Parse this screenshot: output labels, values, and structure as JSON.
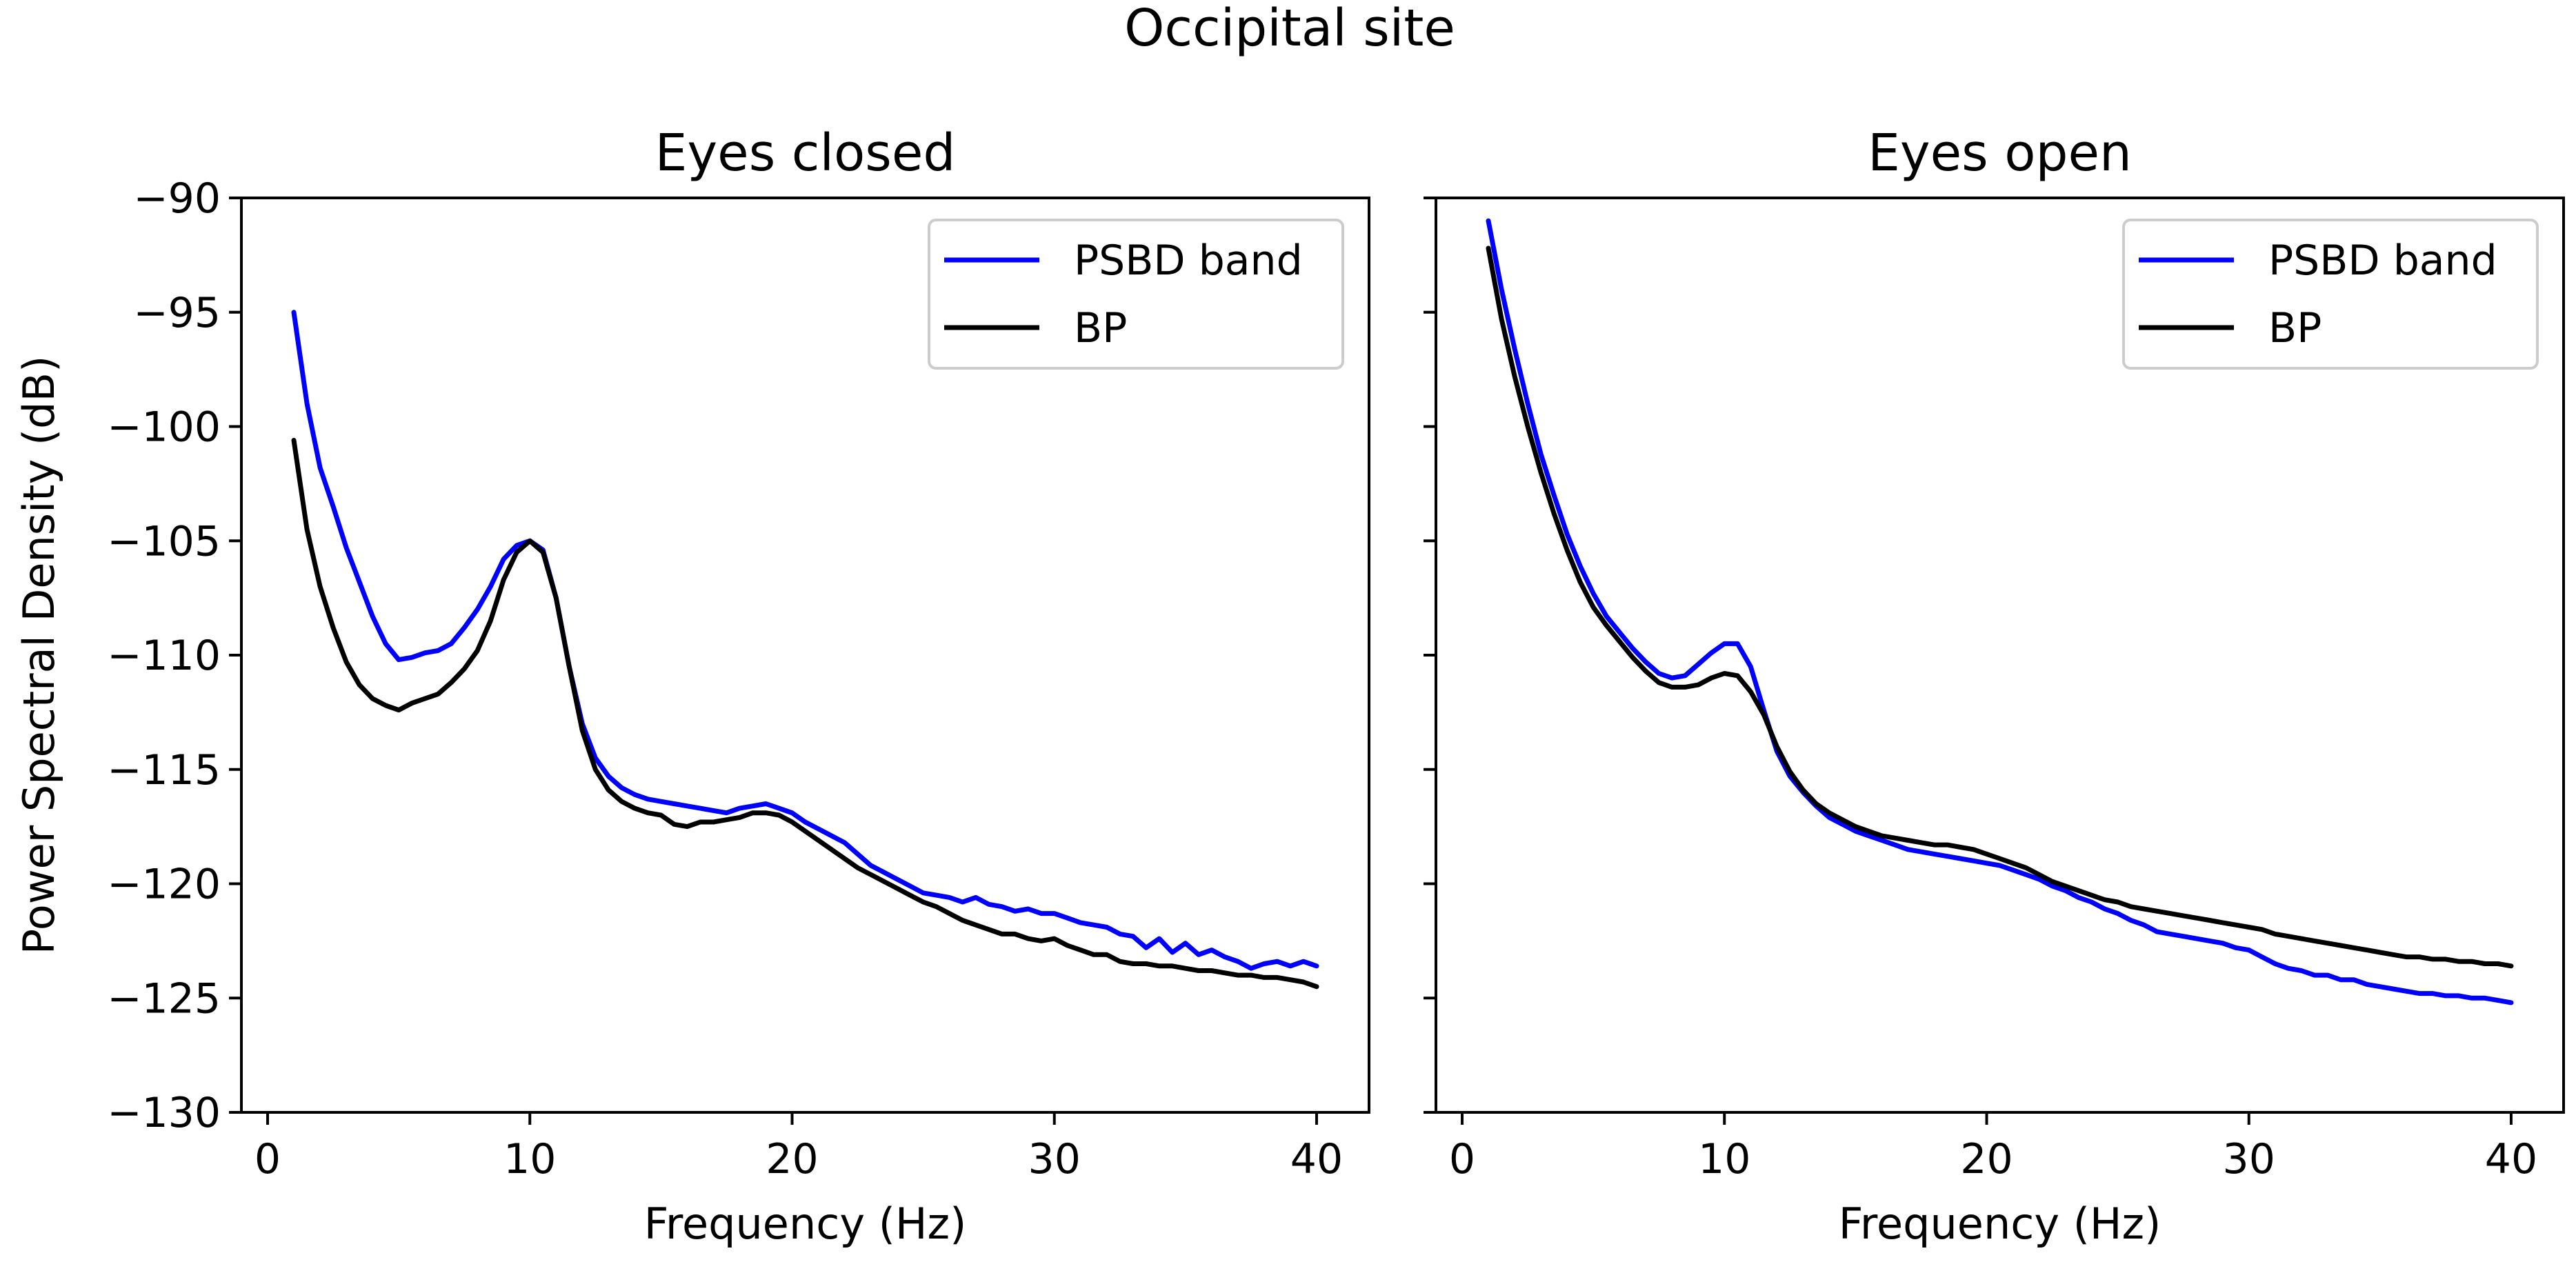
{
  "figure_title": "Occipital site",
  "chart_data": [
    {
      "type": "line",
      "title": "Eyes closed",
      "xlabel": "Frequency (Hz)",
      "ylabel": "Power Spectral Density (dB)",
      "xlim": [
        -1,
        42
      ],
      "ylim": [
        -130,
        -90
      ],
      "xticks": [
        0,
        10,
        20,
        30,
        40
      ],
      "yticks": [
        -90,
        -95,
        -100,
        -105,
        -110,
        -115,
        -120,
        -125,
        -130
      ],
      "xtick_labels": [
        "0",
        "10",
        "20",
        "30",
        "40"
      ],
      "ytick_labels": [
        "−90",
        "−95",
        "−100",
        "−105",
        "−110",
        "−115",
        "−120",
        "−125",
        "−130"
      ],
      "legend_position": "top-right",
      "series": [
        {
          "name": "PSBD band",
          "color": "#0000ff",
          "x": [
            1,
            1.5,
            2,
            2.5,
            3,
            3.5,
            4,
            4.5,
            5,
            5.5,
            6,
            6.5,
            7,
            7.5,
            8,
            8.5,
            9,
            9.5,
            10,
            10.5,
            11,
            11.5,
            12,
            12.5,
            13,
            13.5,
            14,
            14.5,
            15,
            15.5,
            16,
            16.5,
            17,
            17.5,
            18,
            18.5,
            19,
            19.5,
            20,
            20.5,
            21,
            21.5,
            22,
            22.5,
            23,
            23.5,
            24,
            24.5,
            25,
            25.5,
            26,
            26.5,
            27,
            27.5,
            28,
            28.5,
            29,
            29.5,
            30,
            30.5,
            31,
            31.5,
            32,
            32.5,
            33,
            33.5,
            34,
            34.5,
            35,
            35.5,
            36,
            36.5,
            37,
            37.5,
            38,
            38.5,
            39,
            39.5,
            40
          ],
          "y": [
            -95,
            -99,
            -101.8,
            -103.5,
            -105.3,
            -106.8,
            -108.3,
            -109.5,
            -110.2,
            -110.1,
            -109.9,
            -109.8,
            -109.5,
            -108.8,
            -108,
            -107,
            -105.8,
            -105.2,
            -105,
            -105.4,
            -107.5,
            -110.5,
            -113,
            -114.5,
            -115.3,
            -115.8,
            -116.1,
            -116.3,
            -116.4,
            -116.5,
            -116.6,
            -116.7,
            -116.8,
            -116.9,
            -116.7,
            -116.6,
            -116.5,
            -116.7,
            -116.9,
            -117.3,
            -117.6,
            -117.9,
            -118.2,
            -118.7,
            -119.2,
            -119.5,
            -119.8,
            -120.1,
            -120.4,
            -120.5,
            -120.6,
            -120.8,
            -120.6,
            -120.9,
            -121,
            -121.2,
            -121.1,
            -121.3,
            -121.3,
            -121.5,
            -121.7,
            -121.8,
            -121.9,
            -122.2,
            -122.3,
            -122.8,
            -122.4,
            -123,
            -122.6,
            -123.1,
            -122.9,
            -123.2,
            -123.4,
            -123.7,
            -123.5,
            -123.4,
            -123.6,
            -123.4,
            -123.6
          ]
        },
        {
          "name": "BP",
          "color": "#000000",
          "x": [
            1,
            1.5,
            2,
            2.5,
            3,
            3.5,
            4,
            4.5,
            5,
            5.5,
            6,
            6.5,
            7,
            7.5,
            8,
            8.5,
            9,
            9.5,
            10,
            10.5,
            11,
            11.5,
            12,
            12.5,
            13,
            13.5,
            14,
            14.5,
            15,
            15.5,
            16,
            16.5,
            17,
            17.5,
            18,
            18.5,
            19,
            19.5,
            20,
            20.5,
            21,
            21.5,
            22,
            22.5,
            23,
            23.5,
            24,
            24.5,
            25,
            25.5,
            26,
            26.5,
            27,
            27.5,
            28,
            28.5,
            29,
            29.5,
            30,
            30.5,
            31,
            31.5,
            32,
            32.5,
            33,
            33.5,
            34,
            34.5,
            35,
            35.5,
            36,
            36.5,
            37,
            37.5,
            38,
            38.5,
            39,
            39.5,
            40
          ],
          "y": [
            -100.6,
            -104.5,
            -107,
            -108.8,
            -110.3,
            -111.3,
            -111.9,
            -112.2,
            -112.4,
            -112.1,
            -111.9,
            -111.7,
            -111.2,
            -110.6,
            -109.8,
            -108.5,
            -106.7,
            -105.5,
            -105,
            -105.5,
            -107.5,
            -110.5,
            -113.3,
            -115,
            -115.9,
            -116.4,
            -116.7,
            -116.9,
            -117,
            -117.4,
            -117.5,
            -117.3,
            -117.3,
            -117.2,
            -117.1,
            -116.9,
            -116.9,
            -117,
            -117.3,
            -117.7,
            -118.1,
            -118.5,
            -118.9,
            -119.3,
            -119.6,
            -119.9,
            -120.2,
            -120.5,
            -120.8,
            -121,
            -121.3,
            -121.6,
            -121.8,
            -122,
            -122.2,
            -122.2,
            -122.4,
            -122.5,
            -122.4,
            -122.7,
            -122.9,
            -123.1,
            -123.1,
            -123.4,
            -123.5,
            -123.5,
            -123.6,
            -123.6,
            -123.7,
            -123.8,
            -123.8,
            -123.9,
            -124,
            -124,
            -124.1,
            -124.1,
            -124.2,
            -124.3,
            -124.5
          ]
        }
      ]
    },
    {
      "type": "line",
      "title": "Eyes open",
      "xlabel": "Frequency (Hz)",
      "ylabel": "",
      "xlim": [
        -1,
        42
      ],
      "ylim": [
        -130,
        -90
      ],
      "xticks": [
        0,
        10,
        20,
        30,
        40
      ],
      "yticks": [
        -90,
        -95,
        -100,
        -105,
        -110,
        -115,
        -120,
        -125,
        -130
      ],
      "xtick_labels": [
        "0",
        "10",
        "20",
        "30",
        "40"
      ],
      "ytick_labels": [],
      "legend_position": "top-right",
      "series": [
        {
          "name": "PSBD band",
          "color": "#0000ff",
          "x": [
            1,
            1.5,
            2,
            2.5,
            3,
            3.5,
            4,
            4.5,
            5,
            5.5,
            6,
            6.5,
            7,
            7.5,
            8,
            8.5,
            9,
            9.5,
            10,
            10.5,
            11,
            11.5,
            12,
            12.5,
            13,
            13.5,
            14,
            14.5,
            15,
            15.5,
            16,
            16.5,
            17,
            17.5,
            18,
            18.5,
            19,
            19.5,
            20,
            20.5,
            21,
            21.5,
            22,
            22.5,
            23,
            23.5,
            24,
            24.5,
            25,
            25.5,
            26,
            26.5,
            27,
            27.5,
            28,
            28.5,
            29,
            29.5,
            30,
            30.5,
            31,
            31.5,
            32,
            32.5,
            33,
            33.5,
            34,
            34.5,
            35,
            35.5,
            36,
            36.5,
            37,
            37.5,
            38,
            38.5,
            39,
            39.5,
            40
          ],
          "y": [
            -91,
            -94,
            -96.6,
            -99,
            -101.2,
            -103,
            -104.7,
            -106.1,
            -107.3,
            -108.3,
            -109,
            -109.7,
            -110.3,
            -110.8,
            -111,
            -110.9,
            -110.4,
            -109.9,
            -109.5,
            -109.5,
            -110.5,
            -112.4,
            -114.2,
            -115.3,
            -116,
            -116.6,
            -117.1,
            -117.4,
            -117.7,
            -117.9,
            -118.1,
            -118.3,
            -118.5,
            -118.6,
            -118.7,
            -118.8,
            -118.9,
            -119,
            -119.1,
            -119.2,
            -119.4,
            -119.6,
            -119.8,
            -120.1,
            -120.3,
            -120.6,
            -120.8,
            -121.1,
            -121.3,
            -121.6,
            -121.8,
            -122.1,
            -122.2,
            -122.3,
            -122.4,
            -122.5,
            -122.6,
            -122.8,
            -122.9,
            -123.2,
            -123.5,
            -123.7,
            -123.8,
            -124,
            -124,
            -124.2,
            -124.2,
            -124.4,
            -124.5,
            -124.6,
            -124.7,
            -124.8,
            -124.8,
            -124.9,
            -124.9,
            -125,
            -125,
            -125.1,
            -125.2
          ]
        },
        {
          "name": "BP",
          "color": "#000000",
          "x": [
            1,
            1.5,
            2,
            2.5,
            3,
            3.5,
            4,
            4.5,
            5,
            5.5,
            6,
            6.5,
            7,
            7.5,
            8,
            8.5,
            9,
            9.5,
            10,
            10.5,
            11,
            11.5,
            12,
            12.5,
            13,
            13.5,
            14,
            14.5,
            15,
            15.5,
            16,
            16.5,
            17,
            17.5,
            18,
            18.5,
            19,
            19.5,
            20,
            20.5,
            21,
            21.5,
            22,
            22.5,
            23,
            23.5,
            24,
            24.5,
            25,
            25.5,
            26,
            26.5,
            27,
            27.5,
            28,
            28.5,
            29,
            29.5,
            30,
            30.5,
            31,
            31.5,
            32,
            32.5,
            33,
            33.5,
            34,
            34.5,
            35,
            35.5,
            36,
            36.5,
            37,
            37.5,
            38,
            38.5,
            39,
            39.5,
            40
          ],
          "y": [
            -92.2,
            -95.3,
            -97.8,
            -100,
            -102,
            -103.8,
            -105.4,
            -106.8,
            -107.9,
            -108.7,
            -109.4,
            -110.1,
            -110.7,
            -111.2,
            -111.4,
            -111.4,
            -111.3,
            -111,
            -110.8,
            -110.9,
            -111.6,
            -112.6,
            -114,
            -115.1,
            -115.9,
            -116.5,
            -116.9,
            -117.2,
            -117.5,
            -117.7,
            -117.9,
            -118,
            -118.1,
            -118.2,
            -118.3,
            -118.3,
            -118.4,
            -118.5,
            -118.7,
            -118.9,
            -119.1,
            -119.3,
            -119.6,
            -119.9,
            -120.1,
            -120.3,
            -120.5,
            -120.7,
            -120.8,
            -121,
            -121.1,
            -121.2,
            -121.3,
            -121.4,
            -121.5,
            -121.6,
            -121.7,
            -121.8,
            -121.9,
            -122,
            -122.2,
            -122.3,
            -122.4,
            -122.5,
            -122.6,
            -122.7,
            -122.8,
            -122.9,
            -123,
            -123.1,
            -123.2,
            -123.2,
            -123.3,
            -123.3,
            -123.4,
            -123.4,
            -123.5,
            -123.5,
            -123.6
          ]
        }
      ]
    }
  ]
}
